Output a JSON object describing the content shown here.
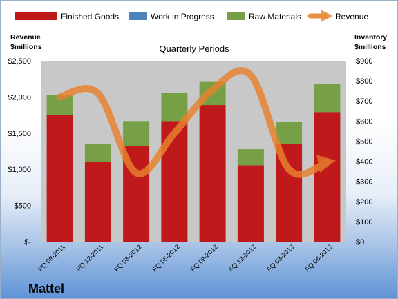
{
  "colors": {
    "finished_goods": "#c0191c",
    "work_in_progress": "#4f81bd",
    "raw_materials": "#77a046",
    "revenue": "#e8822d",
    "plot_background": "#c8c8c8"
  },
  "brand": "Mattel",
  "chart_data": {
    "type": "bar",
    "stacked": true,
    "title": "Quarterly Periods",
    "categories": [
      "FQ 09-2011",
      "FQ 12-2011",
      "FQ 03-2012",
      "FQ 06-2012",
      "FQ 09-2012",
      "FQ 12-2012",
      "FQ 03-2013",
      "FQ 06-2013"
    ],
    "series": [
      {
        "name": "Finished Goods",
        "type": "bar",
        "axis": "right",
        "values": [
          630,
          395,
          475,
          600,
          680,
          380,
          485,
          645
        ]
      },
      {
        "name": "Work in Progress",
        "type": "bar",
        "axis": "right",
        "values": [
          0,
          0,
          0,
          0,
          0,
          0,
          0,
          0
        ]
      },
      {
        "name": "Raw Materials",
        "type": "bar",
        "axis": "right",
        "values": [
          100,
          90,
          125,
          140,
          115,
          80,
          110,
          140
        ]
      },
      {
        "name": "Revenue",
        "type": "line",
        "axis": "left",
        "smooth": true,
        "values": [
          2000,
          2050,
          950,
          1500,
          2100,
          2300,
          1000,
          1100
        ]
      }
    ],
    "left_axis": {
      "label_line1": "Revenue",
      "label_line2": "$millions",
      "ylim": [
        0,
        2500
      ],
      "ticks": [
        0,
        500,
        1000,
        1500,
        2000,
        2500
      ],
      "tick_labels": [
        "$-",
        "$500",
        "$1,000",
        "$1,500",
        "$2,000",
        "$2,500"
      ]
    },
    "right_axis": {
      "label_line1": "Inventory",
      "label_line2": "$millions",
      "ylim": [
        0,
        900
      ],
      "ticks": [
        0,
        100,
        200,
        300,
        400,
        500,
        600,
        700,
        800,
        900
      ],
      "tick_labels": [
        "$0",
        "$100",
        "$200",
        "$300",
        "$400",
        "$500",
        "$600",
        "$700",
        "$800",
        "$900"
      ]
    },
    "legend": "top",
    "grid": false
  }
}
